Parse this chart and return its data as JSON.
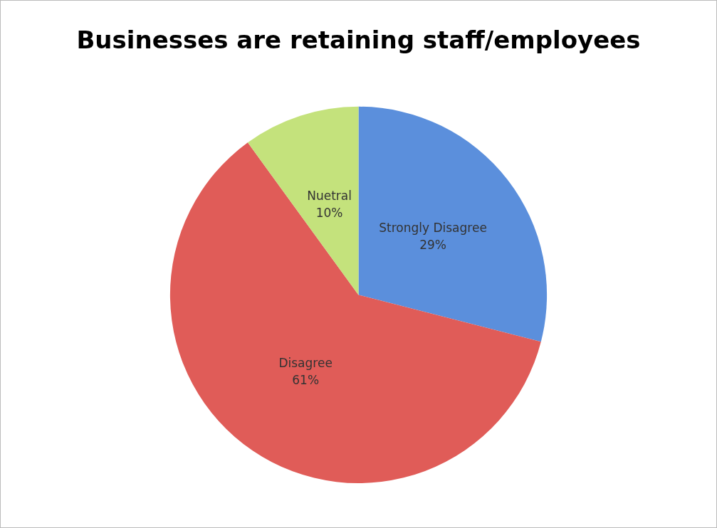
{
  "chart_data": {
    "type": "pie",
    "title": "Businesses are retaining staff/employees",
    "categories": [
      "Strongly Disagree",
      "Disagree",
      "Nuetral"
    ],
    "values": [
      29,
      61,
      10
    ],
    "colors": [
      "#5b8fdc",
      "#e05c58",
      "#c4e27c"
    ],
    "value_labels": [
      "29%",
      "61%",
      "10%"
    ],
    "legend": false
  }
}
